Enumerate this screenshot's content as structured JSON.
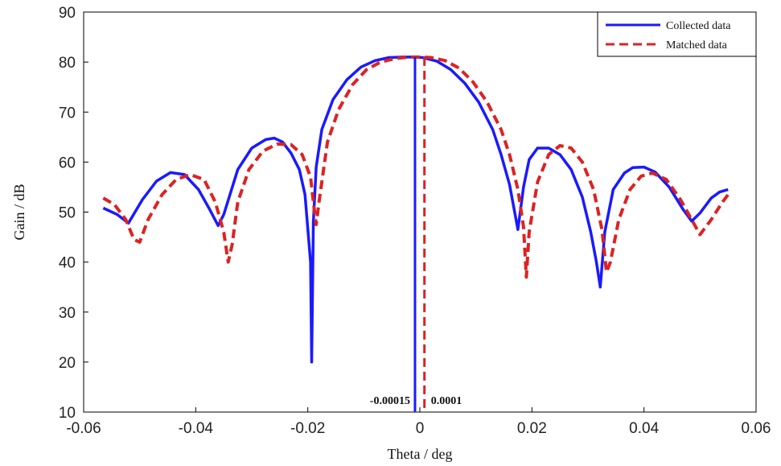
{
  "chart_data": {
    "type": "line",
    "title": "",
    "xlabel": "Theta / deg",
    "ylabel": "Gain / dB",
    "xlim": [
      -0.06,
      0.06
    ],
    "ylim": [
      10,
      90
    ],
    "xticks": [
      -0.06,
      -0.04,
      -0.02,
      0,
      0.02,
      0.04,
      0.06
    ],
    "xtick_labels": [
      "-0.06",
      "-0.04",
      "-0.02",
      "0",
      "0.02",
      "0.04",
      "0.06"
    ],
    "yticks": [
      10,
      20,
      30,
      40,
      50,
      60,
      70,
      80,
      90
    ],
    "ytick_labels": [
      "10",
      "20",
      "30",
      "40",
      "50",
      "60",
      "70",
      "80",
      "90"
    ],
    "grid": false,
    "legend_position": "top-right",
    "series": [
      {
        "name": "Collected data",
        "color": "#1a1aff",
        "style": "solid",
        "x": [
          -0.0565,
          -0.054,
          -0.052,
          -0.0495,
          -0.047,
          -0.0445,
          -0.042,
          -0.0395,
          -0.0375,
          -0.036,
          -0.035,
          -0.0325,
          -0.03,
          -0.0275,
          -0.026,
          -0.0245,
          -0.023,
          -0.0215,
          -0.0205,
          -0.0195,
          -0.0193,
          -0.019,
          -0.0185,
          -0.0175,
          -0.0155,
          -0.013,
          -0.0105,
          -0.008,
          -0.0055,
          -0.003,
          -0.0015,
          0.0005,
          0.003,
          0.0055,
          0.008,
          0.0105,
          0.013,
          0.0145,
          0.016,
          0.0175,
          0.0185,
          0.0195,
          0.021,
          0.023,
          0.025,
          0.027,
          0.029,
          0.0305,
          0.0315,
          0.0322,
          0.033,
          0.0345,
          0.0365,
          0.038,
          0.04,
          0.042,
          0.0445,
          0.047,
          0.0485,
          0.05,
          0.052,
          0.0535,
          0.055
        ],
        "y": [
          50.8,
          49.5,
          47.8,
          52.5,
          56.2,
          57.9,
          57.5,
          54.5,
          50.5,
          47.3,
          49.5,
          58.5,
          62.8,
          64.5,
          64.8,
          64.0,
          61.8,
          58.5,
          53.5,
          40.0,
          20.0,
          48.0,
          59.0,
          66.5,
          72.5,
          76.5,
          79.0,
          80.3,
          80.9,
          81.0,
          81.0,
          80.9,
          80.2,
          78.5,
          75.8,
          72.0,
          66.5,
          61.5,
          55.5,
          46.5,
          55.0,
          60.5,
          62.8,
          62.8,
          61.5,
          58.5,
          53.0,
          46.0,
          40.0,
          35.0,
          46.0,
          54.5,
          57.8,
          58.9,
          59.0,
          58.0,
          55.0,
          50.5,
          48.2,
          49.8,
          52.8,
          54.0,
          54.5
        ]
      },
      {
        "name": "Matched data",
        "color": "#dd2222",
        "style": "dashed",
        "x": [
          -0.0565,
          -0.0545,
          -0.0525,
          -0.051,
          -0.05,
          -0.0485,
          -0.046,
          -0.0435,
          -0.041,
          -0.0385,
          -0.0365,
          -0.035,
          -0.0342,
          -0.0335,
          -0.0325,
          -0.0305,
          -0.028,
          -0.0255,
          -0.023,
          -0.021,
          -0.0195,
          -0.019,
          -0.0185,
          -0.018,
          -0.0165,
          -0.0145,
          -0.012,
          -0.0095,
          -0.007,
          -0.0045,
          -0.002,
          0.0001,
          0.002,
          0.0045,
          0.007,
          0.0095,
          0.012,
          0.0145,
          0.016,
          0.0175,
          0.0185,
          0.019,
          0.0195,
          0.021,
          0.023,
          0.025,
          0.027,
          0.029,
          0.031,
          0.0325,
          0.0333,
          0.034,
          0.0355,
          0.0375,
          0.0395,
          0.0415,
          0.044,
          0.0465,
          0.0485,
          0.05,
          0.052,
          0.054,
          0.055
        ],
        "y": [
          52.8,
          51.5,
          48.5,
          44.5,
          44.0,
          48.5,
          53.5,
          56.5,
          57.5,
          56.5,
          52.0,
          46.0,
          40.0,
          43.5,
          52.0,
          58.5,
          62.2,
          63.6,
          63.5,
          61.5,
          57.0,
          52.0,
          47.5,
          52.0,
          64.0,
          70.5,
          75.5,
          78.5,
          80.0,
          80.7,
          81.0,
          81.0,
          80.9,
          80.3,
          78.8,
          76.0,
          72.0,
          66.5,
          61.5,
          54.5,
          47.0,
          37.0,
          46.0,
          56.0,
          61.5,
          63.3,
          62.8,
          60.0,
          54.5,
          46.5,
          38.0,
          40.0,
          48.5,
          54.5,
          57.2,
          57.8,
          56.5,
          52.5,
          48.5,
          45.5,
          48.5,
          52.0,
          53.5
        ]
      }
    ],
    "annotations": [
      {
        "text": "-0.00015",
        "x": -0.00015,
        "color": "#1a1aff",
        "style": "solid"
      },
      {
        "text": "0.0001",
        "x": 0.0001,
        "color": "#dd2222",
        "style": "dashed"
      }
    ]
  }
}
